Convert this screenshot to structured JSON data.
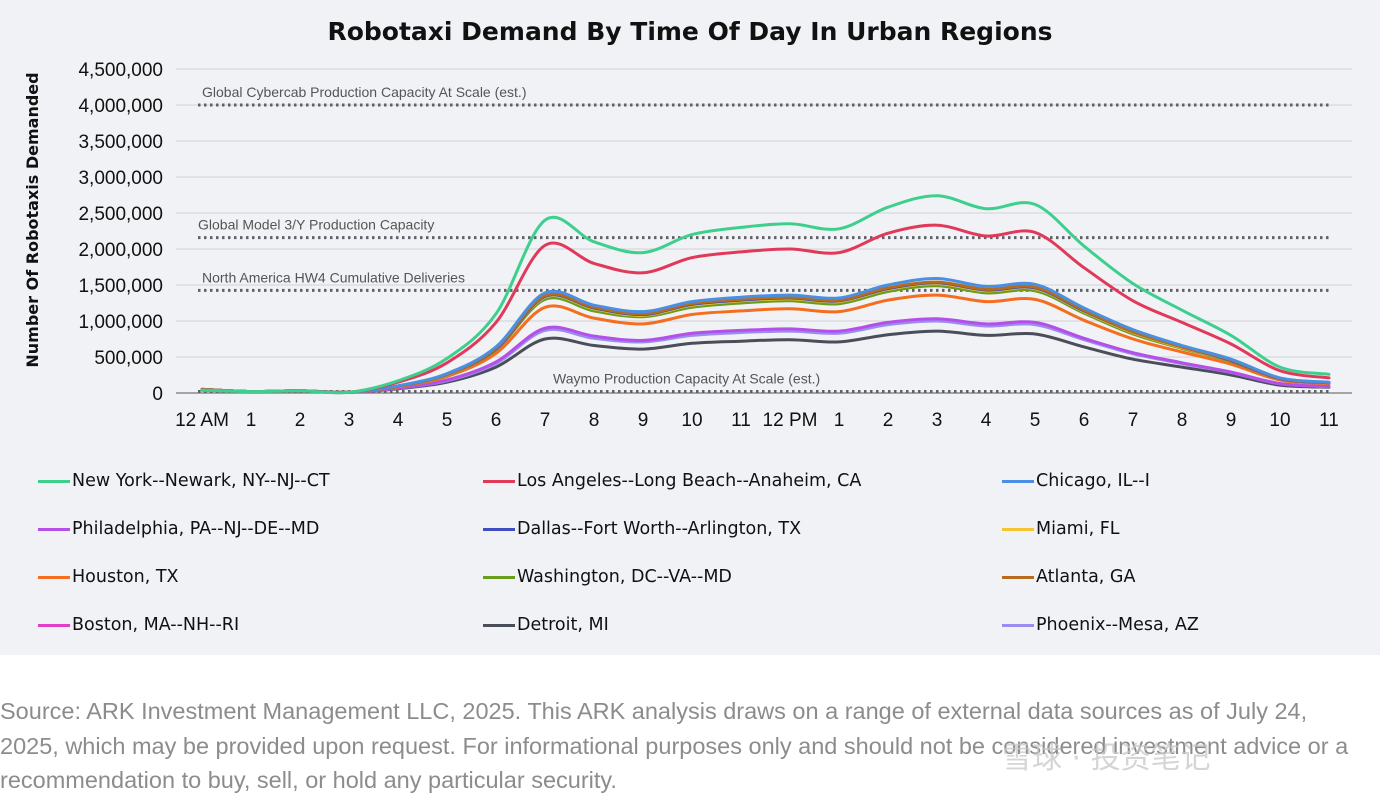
{
  "chart_data": {
    "type": "line",
    "title": "Robotaxi Demand By Time Of Day In Urban Regions",
    "ylabel": "Number Of Robotaxis Demanded",
    "xlabel": "",
    "ylim": [
      0,
      4500000
    ],
    "yticks": [
      "0",
      "500,000",
      "1,000,000",
      "1,500,000",
      "2,000,000",
      "2,500,000",
      "3,000,000",
      "3,500,000",
      "4,000,000",
      "4,500,000"
    ],
    "x_labels": [
      "12 AM",
      "1",
      "2",
      "3",
      "4",
      "5",
      "6",
      "7",
      "8",
      "9",
      "10",
      "11",
      "12 PM",
      "1",
      "2",
      "3",
      "4",
      "5",
      "6",
      "7",
      "8",
      "9",
      "10",
      "11"
    ],
    "grid": "horizontal",
    "legend_position": "bottom",
    "reference_lines": [
      {
        "label": "Global Cybercab Production Capacity At Scale (est.)",
        "value": 4000000
      },
      {
        "label": "Global Model 3/Y Production Capacity",
        "value": 2130000
      },
      {
        "label": "North America HW4 Cumulative Deliveries",
        "value": 1370000
      },
      {
        "label": "Waymo Production Capacity At Scale (est.)",
        "value": 20000
      }
    ],
    "series": [
      {
        "name": "New York--Newark, NY--NJ--CT",
        "color": "#3ecf8e",
        "values": [
          40000,
          20000,
          30000,
          10000,
          170000,
          480000,
          1100000,
          2400000,
          2100000,
          1950000,
          2200000,
          2300000,
          2350000,
          2280000,
          2580000,
          2740000,
          2560000,
          2620000,
          2040000,
          1520000,
          1150000,
          800000,
          360000,
          260000
        ]
      },
      {
        "name": "Los Angeles--Long Beach--Anaheim, CA",
        "color": "#e0395a",
        "values": [
          40000,
          20000,
          30000,
          10000,
          150000,
          420000,
          980000,
          2050000,
          1800000,
          1670000,
          1880000,
          1960000,
          2000000,
          1950000,
          2220000,
          2330000,
          2180000,
          2230000,
          1740000,
          1280000,
          980000,
          680000,
          310000,
          210000
        ]
      },
      {
        "name": "Chicago, IL--I",
        "color": "#4a90e2",
        "values": [
          40000,
          20000,
          30000,
          10000,
          100000,
          270000,
          640000,
          1390000,
          1220000,
          1130000,
          1270000,
          1330000,
          1360000,
          1320000,
          1500000,
          1590000,
          1480000,
          1510000,
          1180000,
          880000,
          660000,
          470000,
          210000,
          150000
        ]
      },
      {
        "name": "Miami, FL",
        "color": "#f5c431",
        "values": [
          50000,
          20000,
          30000,
          10000,
          95000,
          255000,
          610000,
          1330000,
          1170000,
          1080000,
          1220000,
          1280000,
          1310000,
          1270000,
          1440000,
          1520000,
          1420000,
          1450000,
          1130000,
          840000,
          630000,
          450000,
          200000,
          140000
        ]
      },
      {
        "name": "Philadelphia, PA--NJ--DE--MD",
        "color": "#b44fe8",
        "values": [
          50000,
          20000,
          30000,
          10000,
          70000,
          180000,
          430000,
          900000,
          790000,
          730000,
          830000,
          870000,
          890000,
          860000,
          980000,
          1030000,
          960000,
          980000,
          760000,
          560000,
          420000,
          290000,
          130000,
          90000
        ]
      },
      {
        "name": "Dallas--Fort Worth--Arlington, TX",
        "color": "#3f4dbf",
        "values": [
          50000,
          20000,
          30000,
          10000,
          95000,
          260000,
          610000,
          1340000,
          1180000,
          1090000,
          1230000,
          1290000,
          1320000,
          1280000,
          1450000,
          1530000,
          1430000,
          1460000,
          1140000,
          850000,
          640000,
          450000,
          200000,
          140000
        ]
      },
      {
        "name": "Houston, TX",
        "color": "#f56d1f",
        "values": [
          50000,
          20000,
          30000,
          10000,
          85000,
          230000,
          550000,
          1190000,
          1040000,
          960000,
          1090000,
          1140000,
          1170000,
          1130000,
          1290000,
          1360000,
          1270000,
          1300000,
          1010000,
          750000,
          570000,
          400000,
          180000,
          130000
        ]
      },
      {
        "name": "Washington, DC--VA--MD",
        "color": "#6a9c1e",
        "values": [
          50000,
          20000,
          30000,
          10000,
          93000,
          250000,
          600000,
          1300000,
          1140000,
          1060000,
          1190000,
          1250000,
          1280000,
          1240000,
          1410000,
          1490000,
          1390000,
          1420000,
          1110000,
          820000,
          620000,
          440000,
          200000,
          140000
        ]
      },
      {
        "name": "Atlanta, GA",
        "color": "#b86a1e",
        "values": [
          50000,
          20000,
          30000,
          10000,
          96000,
          262000,
          620000,
          1350000,
          1190000,
          1100000,
          1240000,
          1300000,
          1330000,
          1290000,
          1460000,
          1540000,
          1440000,
          1470000,
          1150000,
          850000,
          640000,
          460000,
          205000,
          145000
        ]
      },
      {
        "name": "Boston, MA--NH--RI",
        "color": "#e040c8",
        "values": [
          50000,
          20000,
          30000,
          10000,
          70000,
          175000,
          420000,
          880000,
          770000,
          720000,
          810000,
          850000,
          870000,
          840000,
          960000,
          1010000,
          940000,
          960000,
          750000,
          550000,
          410000,
          290000,
          130000,
          90000
        ]
      },
      {
        "name": "Detroit, MI",
        "color": "#4a4e59",
        "values": [
          50000,
          20000,
          30000,
          10000,
          60000,
          150000,
          360000,
          750000,
          660000,
          610000,
          690000,
          720000,
          740000,
          710000,
          810000,
          860000,
          800000,
          820000,
          640000,
          470000,
          360000,
          250000,
          110000,
          80000
        ]
      },
      {
        "name": "Phoenix--Mesa, AZ",
        "color": "#9b8cf0",
        "values": [
          50000,
          20000,
          30000,
          10000,
          68000,
          170000,
          410000,
          870000,
          760000,
          710000,
          800000,
          840000,
          860000,
          830000,
          950000,
          1000000,
          930000,
          950000,
          740000,
          545000,
          410000,
          285000,
          128000,
          88000
        ]
      }
    ]
  },
  "legend_order": [
    0,
    1,
    2,
    4,
    5,
    3,
    6,
    7,
    8,
    9,
    10,
    11
  ],
  "source_text": "Source: ARK Investment Management LLC, 2025. This ARK analysis draws on a range of external data sources as of July 24, 2025, which may be provided upon request. For informational purposes only and should not be considered investment advice or a recommendation to buy, sell, or hold any particular security.",
  "watermark": "雪球 · 投资笔记"
}
